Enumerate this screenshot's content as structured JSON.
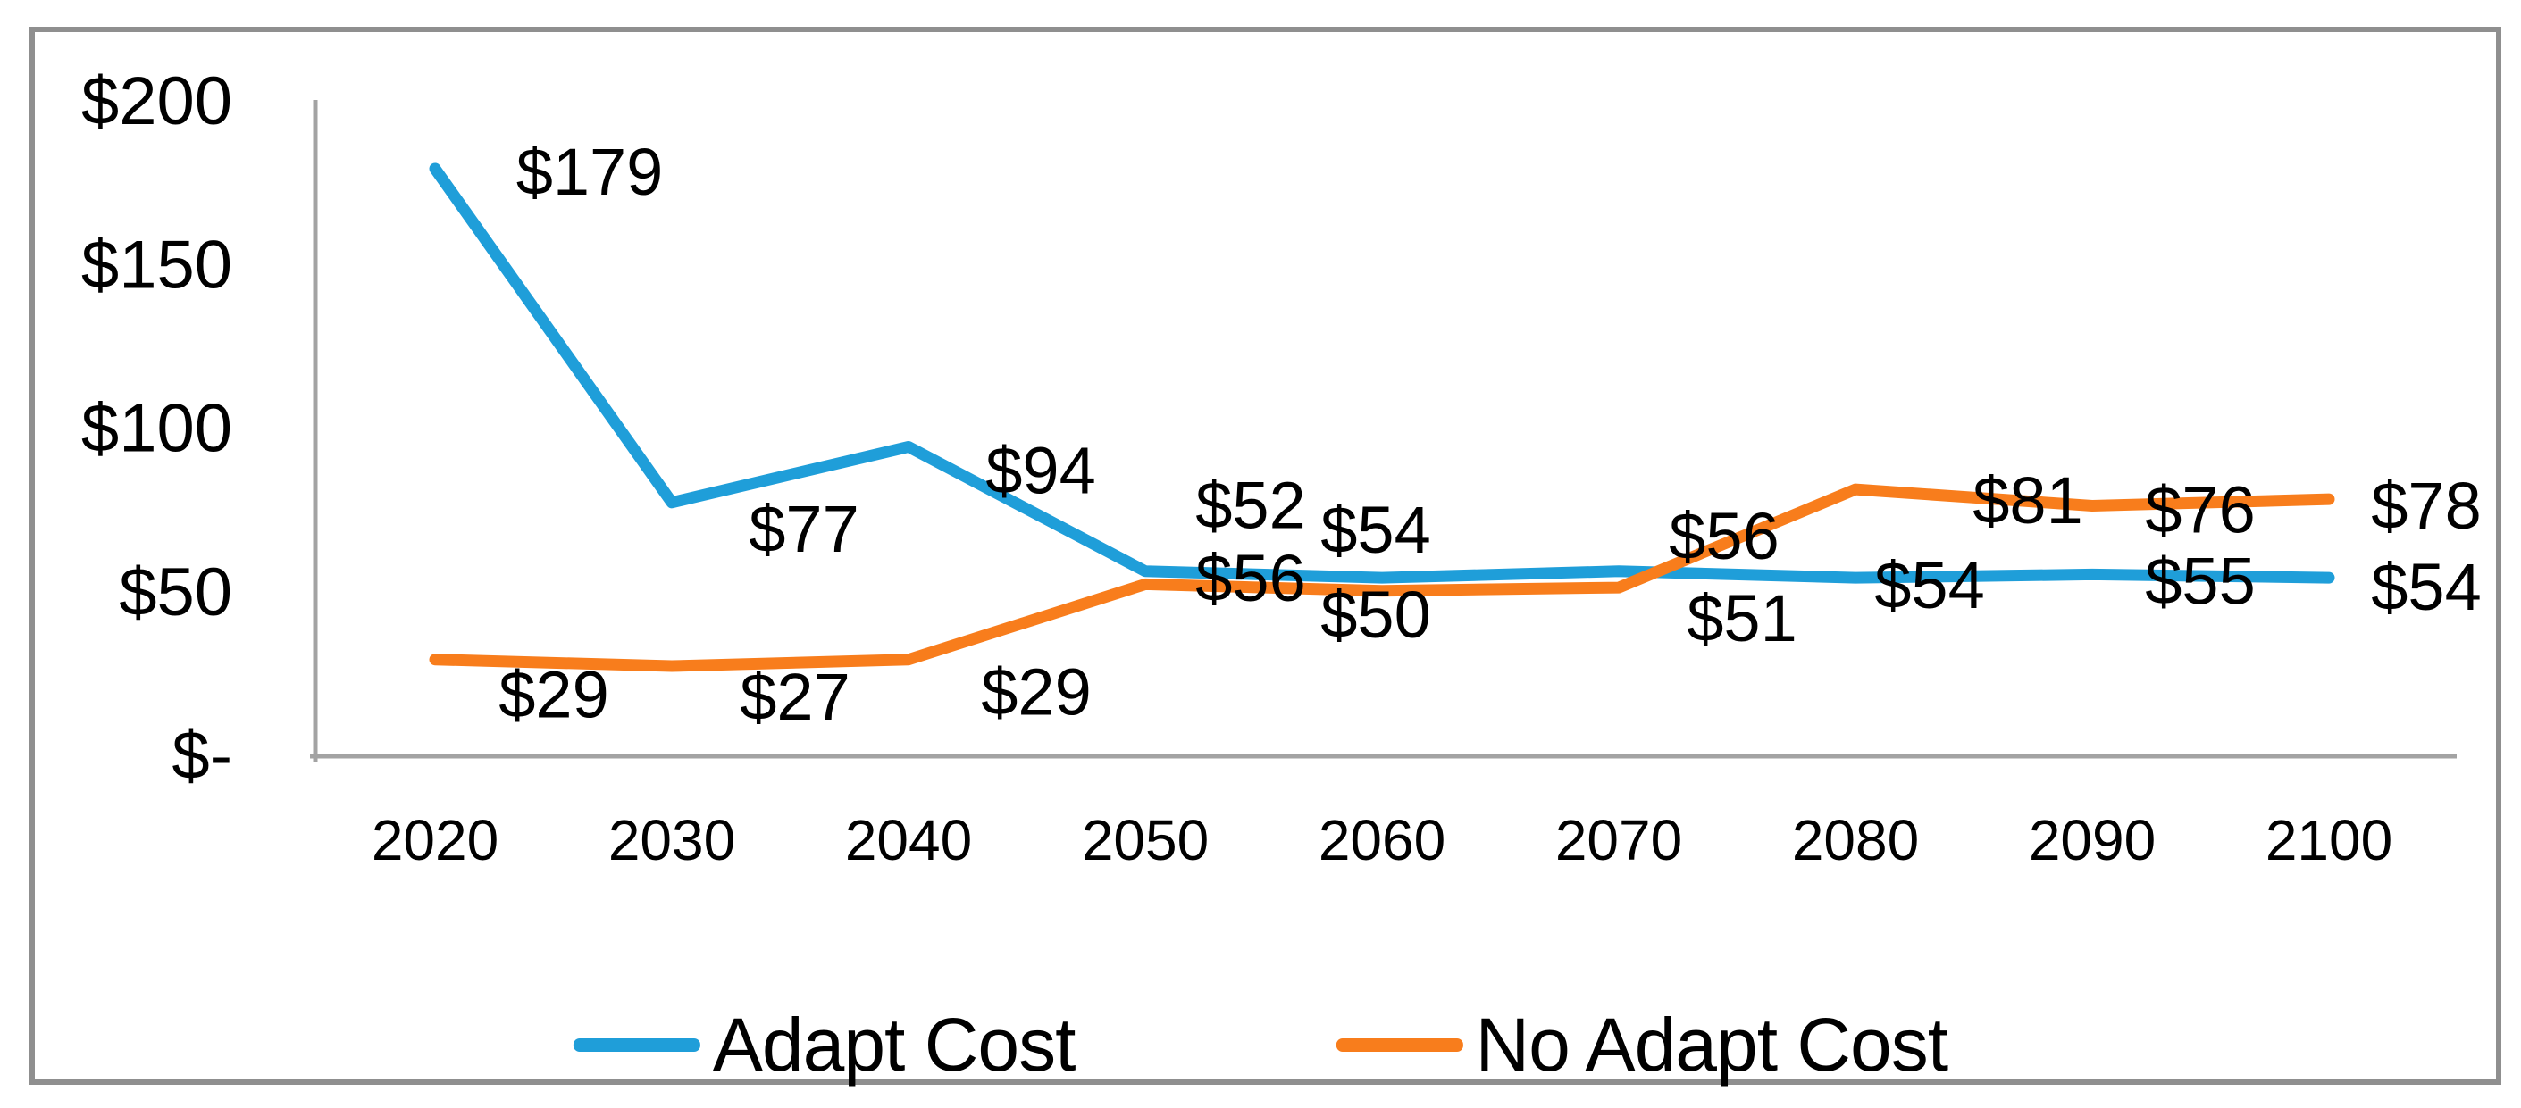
{
  "chart_data": {
    "type": "line",
    "title": "",
    "xlabel": "",
    "ylabel": "",
    "categories": [
      "2020",
      "2030",
      "2040",
      "2050",
      "2060",
      "2070",
      "2080",
      "2090",
      "2100"
    ],
    "series": [
      {
        "name": "Adapt Cost",
        "color": "#1f9ed9",
        "values": [
          179,
          77,
          94,
          56,
          54,
          56,
          54,
          55,
          54
        ],
        "point_labels": [
          "$179",
          "$77",
          "$94",
          "$56",
          "$54",
          "$56",
          "$54",
          "$55",
          "$54"
        ]
      },
      {
        "name": "No Adapt Cost",
        "color": "#f87d1c",
        "values": [
          29,
          27,
          29,
          52,
          50,
          51,
          81,
          76,
          78
        ],
        "point_labels": [
          "$29",
          "$27",
          "$29",
          "$52",
          "$50",
          "$51",
          "$81",
          "$76",
          "$78"
        ]
      }
    ],
    "y_axis": {
      "tick_labels": [
        "$-",
        "$50",
        "$100",
        "$150",
        "$200"
      ],
      "tick_values": [
        0,
        50,
        100,
        150,
        200
      ],
      "min": 0,
      "max": 200
    },
    "grid": false,
    "legend_position": "bottom",
    "axis_color": "#a3a3a3",
    "label_color": "#000000"
  },
  "legend": {
    "items": [
      {
        "label": "Adapt Cost",
        "color": "#1f9ed9"
      },
      {
        "label": "No Adapt Cost",
        "color": "#f87d1c"
      }
    ]
  }
}
